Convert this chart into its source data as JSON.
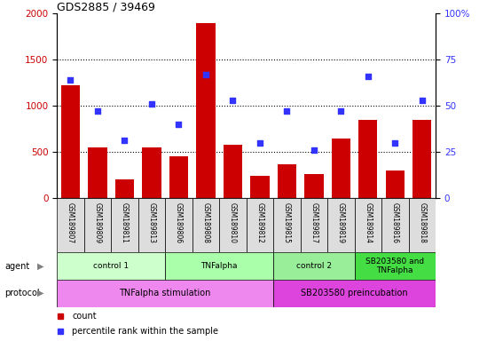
{
  "title": "GDS2885 / 39469",
  "samples": [
    "GSM189807",
    "GSM189809",
    "GSM189811",
    "GSM189813",
    "GSM189806",
    "GSM189808",
    "GSM189810",
    "GSM189812",
    "GSM189815",
    "GSM189817",
    "GSM189819",
    "GSM189814",
    "GSM189816",
    "GSM189818"
  ],
  "counts": [
    1220,
    550,
    200,
    550,
    450,
    1900,
    580,
    240,
    360,
    260,
    640,
    850,
    300,
    850
  ],
  "percentiles": [
    64,
    47,
    31,
    51,
    40,
    67,
    53,
    30,
    47,
    26,
    47,
    66,
    30,
    53
  ],
  "ylim_left": [
    0,
    2000
  ],
  "ylim_right": [
    0,
    100
  ],
  "yticks_left": [
    0,
    500,
    1000,
    1500,
    2000
  ],
  "yticks_right": [
    0,
    25,
    50,
    75,
    100
  ],
  "ytick_right_labels": [
    "0",
    "25",
    "50",
    "75",
    "100%"
  ],
  "bar_color": "#cc0000",
  "dot_color": "#3333ff",
  "agent_groups": [
    {
      "label": "control 1",
      "start": 0,
      "end": 4,
      "color": "#ccffcc"
    },
    {
      "label": "TNFalpha",
      "start": 4,
      "end": 8,
      "color": "#aaffaa"
    },
    {
      "label": "control 2",
      "start": 8,
      "end": 11,
      "color": "#99ee99"
    },
    {
      "label": "SB203580 and\nTNFalpha",
      "start": 11,
      "end": 14,
      "color": "#44dd44"
    }
  ],
  "protocol_groups": [
    {
      "label": "TNFalpha stimulation",
      "start": 0,
      "end": 8,
      "color": "#ee88ee"
    },
    {
      "label": "SB203580 preincubation",
      "start": 8,
      "end": 14,
      "color": "#dd44dd"
    }
  ],
  "sample_bg_color": "#dddddd",
  "fig_width": 5.58,
  "fig_height": 3.84,
  "dpi": 100
}
